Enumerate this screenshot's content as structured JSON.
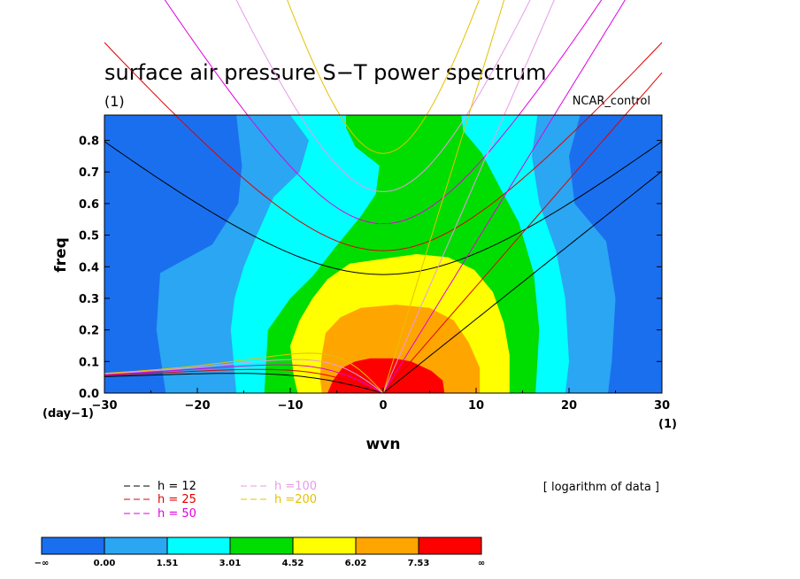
{
  "title": "surface air pressure S−T power spectrum",
  "units_label": "(1)",
  "case_label": "NCAR_control",
  "note": "[ logarithm of data ]",
  "chart_data": {
    "type": "heatmap",
    "title": "surface air pressure S−T power spectrum",
    "xlabel": "wvn",
    "ylabel": "freq",
    "xunits": "(1)",
    "yunits": "(day−1)",
    "xlim": [
      -30,
      30
    ],
    "ylim": [
      0,
      0.88
    ],
    "xticks": [
      -30,
      -20,
      -10,
      0,
      10,
      20,
      30
    ],
    "yticks": [
      0.0,
      0.1,
      0.2,
      0.3,
      0.4,
      0.5,
      0.6,
      0.7,
      0.8
    ],
    "colorbar": {
      "labels": [
        "−∞",
        "0.00",
        "1.51",
        "3.01",
        "4.52",
        "6.02",
        "7.53",
        "∞"
      ],
      "colors": [
        "#1a6fef",
        "#2aa6f2",
        "#00ffff",
        "#00dd00",
        "#ffff00",
        "#ffa500",
        "#ff0000"
      ]
    },
    "contour_regions": [
      {
        "level": "0.00 to 1.51",
        "color": "#2aa6f2",
        "left_boundary": [
          [
            -15.8,
            0.88
          ],
          [
            -15.2,
            0.72
          ],
          [
            -15.6,
            0.6
          ],
          [
            -18.4,
            0.47
          ],
          [
            -24.0,
            0.38
          ],
          [
            -24.4,
            0.2
          ],
          [
            -23.4,
            0
          ]
        ],
        "right_boundary": [
          [
            21.2,
            0.88
          ],
          [
            20.0,
            0.75
          ],
          [
            20.6,
            0.6
          ],
          [
            24.0,
            0.48
          ],
          [
            25.0,
            0.3
          ],
          [
            24.6,
            0.1
          ],
          [
            24.2,
            0
          ]
        ]
      },
      {
        "level": "1.51 to 3.01",
        "color": "#00ffff",
        "left_boundary": [
          [
            -10.0,
            0.88
          ],
          [
            -8.0,
            0.8
          ],
          [
            -9.0,
            0.7
          ],
          [
            -11.8,
            0.62
          ],
          [
            -13.6,
            0.5
          ],
          [
            -15.0,
            0.4
          ],
          [
            -16.0,
            0.3
          ],
          [
            -16.4,
            0.2
          ],
          [
            -15.8,
            0
          ]
        ],
        "right_boundary": [
          [
            16.6,
            0.88
          ],
          [
            16.0,
            0.75
          ],
          [
            16.8,
            0.6
          ],
          [
            18.6,
            0.45
          ],
          [
            19.6,
            0.3
          ],
          [
            20.0,
            0.1
          ],
          [
            19.6,
            0
          ]
        ]
      },
      {
        "level": "3.01 to 4.52",
        "color": "#00dd00",
        "left_boundary": [
          [
            -4.0,
            0.88
          ],
          [
            -4.0,
            0.84
          ],
          [
            -3.0,
            0.78
          ],
          [
            -0.4,
            0.72
          ],
          [
            -0.8,
            0.63
          ],
          [
            -2.4,
            0.56
          ],
          [
            -5.2,
            0.46
          ],
          [
            -7.6,
            0.37
          ],
          [
            -10.0,
            0.3
          ],
          [
            -12.4,
            0.2
          ],
          [
            -12.6,
            0.1
          ],
          [
            -12.8,
            0
          ]
        ],
        "right_boundary": [
          [
            8.4,
            0.88
          ],
          [
            8.6,
            0.83
          ],
          [
            10.6,
            0.76
          ],
          [
            12.4,
            0.66
          ],
          [
            14.6,
            0.54
          ],
          [
            16.2,
            0.38
          ],
          [
            16.8,
            0.2
          ],
          [
            16.4,
            0
          ]
        ]
      },
      {
        "level": "4.52 to 6.02",
        "color": "#ffff00",
        "left_boundary": [
          [
            -3.6,
            0.41
          ],
          [
            -6.0,
            0.36
          ],
          [
            -7.6,
            0.3
          ],
          [
            -9.0,
            0.23
          ],
          [
            -10.0,
            0.15
          ],
          [
            -9.6,
            0.05
          ],
          [
            -9.2,
            0
          ]
        ],
        "right_boundary": [
          [
            3.6,
            0.44
          ],
          [
            7.0,
            0.43
          ],
          [
            9.8,
            0.39
          ],
          [
            11.8,
            0.32
          ],
          [
            13.0,
            0.22
          ],
          [
            13.6,
            0.12
          ],
          [
            13.6,
            0
          ]
        ]
      },
      {
        "level": "6.02 to 7.53",
        "color": "#ffa500",
        "left_boundary": [
          [
            -2.4,
            0.27
          ],
          [
            -4.6,
            0.24
          ],
          [
            -6.2,
            0.19
          ],
          [
            -6.6,
            0.12
          ],
          [
            -6.8,
            0.05
          ],
          [
            -6.6,
            0
          ]
        ],
        "right_boundary": [
          [
            1.4,
            0.28
          ],
          [
            5.0,
            0.27
          ],
          [
            7.6,
            0.23
          ],
          [
            9.2,
            0.16
          ],
          [
            10.4,
            0.08
          ],
          [
            10.4,
            0
          ]
        ]
      },
      {
        "level": "> 7.53",
        "color": "#ff0000",
        "left_boundary": [
          [
            -1.4,
            0.11
          ],
          [
            -3.0,
            0.1
          ],
          [
            -4.4,
            0.08
          ],
          [
            -5.4,
            0.04
          ],
          [
            -6.0,
            0
          ]
        ],
        "right_boundary": [
          [
            1.2,
            0.11
          ],
          [
            3.0,
            0.1
          ],
          [
            5.2,
            0.07
          ],
          [
            6.4,
            0.04
          ],
          [
            6.6,
            0
          ]
        ]
      }
    ],
    "dispersion_curves": [
      {
        "name": "h = 12",
        "color": "#000000"
      },
      {
        "name": "h = 25",
        "color": "#e00000"
      },
      {
        "name": "h = 50",
        "color": "#e000e0"
      },
      {
        "name": "h =100",
        "color": "#e79be7"
      },
      {
        "name": "h =200",
        "color": "#e6c000"
      }
    ]
  }
}
